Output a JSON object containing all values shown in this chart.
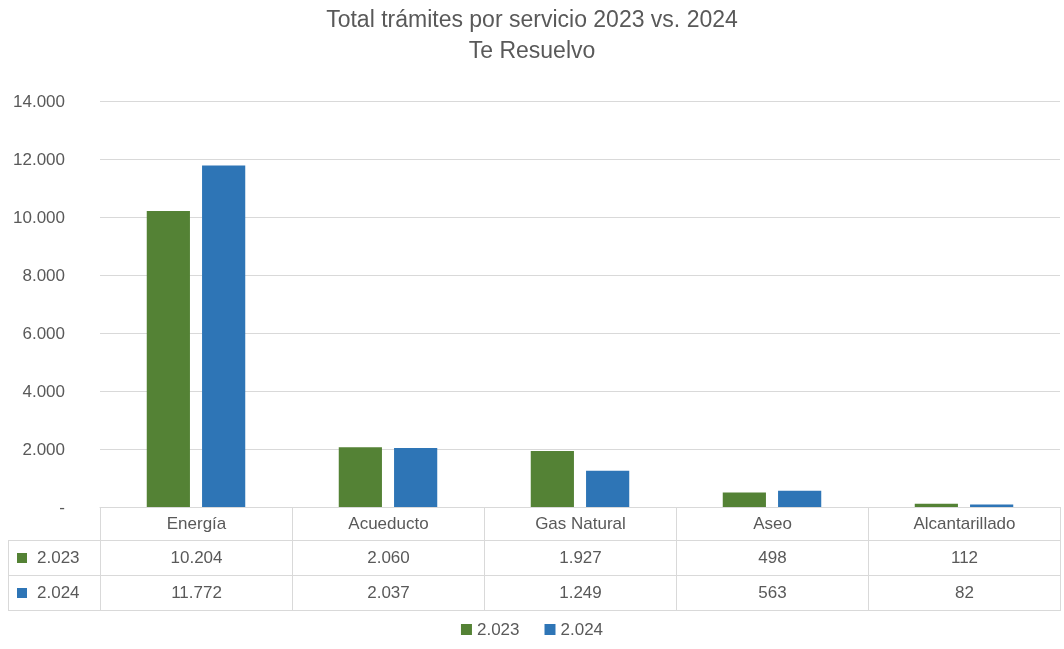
{
  "chart_data": {
    "type": "bar",
    "title": "Total trámites por servicio 2023 vs. 2024",
    "subtitle": "Te Resuelvo",
    "categories": [
      "Energía",
      "Acueducto",
      "Gas Natural",
      "Aseo",
      "Alcantarillado"
    ],
    "series": [
      {
        "name": "2.023",
        "color": "#548235",
        "values": [
          10204,
          2060,
          1927,
          498,
          112
        ],
        "value_labels": [
          "10.204",
          "2.060",
          "1.927",
          "498",
          "112"
        ]
      },
      {
        "name": "2.024",
        "color": "#2e75b6",
        "values": [
          11772,
          2037,
          1249,
          563,
          82
        ],
        "value_labels": [
          "11.772",
          "2.037",
          "1.249",
          "563",
          "82"
        ]
      }
    ],
    "ylim": [
      0,
      14000
    ],
    "yticks": [
      {
        "value": 0,
        "label": "-"
      },
      {
        "value": 2000,
        "label": "2.000"
      },
      {
        "value": 4000,
        "label": "4.000"
      },
      {
        "value": 6000,
        "label": "6.000"
      },
      {
        "value": 8000,
        "label": "8.000"
      },
      {
        "value": 10000,
        "label": "10.000"
      },
      {
        "value": 12000,
        "label": "12.000"
      },
      {
        "value": 14000,
        "label": "14.000"
      }
    ],
    "grid": "y",
    "legend": "bottom"
  }
}
